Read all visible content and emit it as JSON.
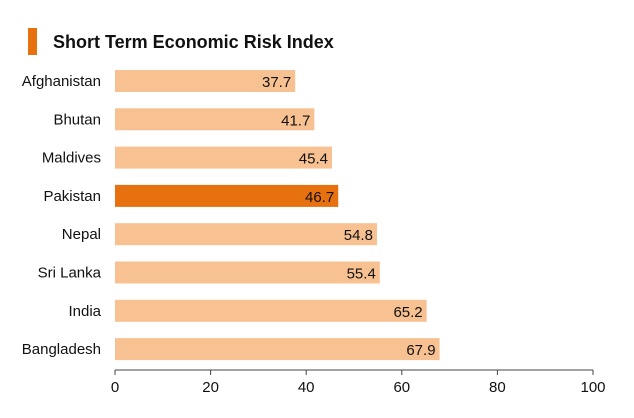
{
  "colors": {
    "bar": "#f8c191",
    "highlight": "#e8710f",
    "title_marker": "#e8710f",
    "axis": "#444444",
    "text": "#111111"
  },
  "chart_data": {
    "type": "bar",
    "orientation": "horizontal",
    "title": "Short Term Economic Risk Index",
    "categories": [
      "Afghanistan",
      "Bhutan",
      "Maldives",
      "Pakistan",
      "Nepal",
      "Sri Lanka",
      "India",
      "Bangladesh"
    ],
    "values": [
      37.7,
      41.7,
      45.4,
      46.7,
      54.8,
      55.4,
      65.2,
      67.9
    ],
    "data_labels": [
      "37.7",
      "41.7",
      "45.4",
      "46.7",
      "54.8",
      "55.4",
      "65.2",
      "67.9"
    ],
    "highlight_category": "Pakistan",
    "xlim": [
      0,
      100
    ],
    "xticks": [
      0,
      20,
      40,
      60,
      80,
      100
    ],
    "xtick_labels": [
      "0",
      "20",
      "40",
      "60",
      "80",
      "100"
    ],
    "grid": false,
    "legend": "none"
  }
}
